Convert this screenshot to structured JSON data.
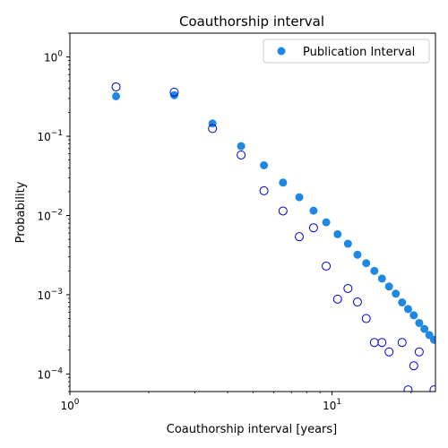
{
  "chart_data": {
    "type": "scatter",
    "title": "Coauthorship interval",
    "xlabel": "Coauthorship interval [years]",
    "ylabel": "Probability",
    "x_scale": "log",
    "y_scale": "log",
    "xlim": [
      1,
      24.8
    ],
    "ylim": [
      6e-05,
      2
    ],
    "grid": false,
    "legend_position": "top-right",
    "x_ticks": [
      {
        "value": 1,
        "label": "10^0"
      },
      {
        "value": 10,
        "label": "10^1"
      }
    ],
    "y_ticks": [
      {
        "value": 0.0001,
        "label": "10^-4"
      },
      {
        "value": 0.001,
        "label": "10^-3"
      },
      {
        "value": 0.01,
        "label": "10^-2"
      },
      {
        "value": 0.1,
        "label": "10^-1"
      },
      {
        "value": 1,
        "label": "10^0"
      }
    ],
    "series": [
      {
        "name": "Publication Interval",
        "marker": "filled-circle",
        "color": "#1e88e5",
        "x": [
          1.5,
          2.5,
          3.5,
          4.5,
          5.5,
          6.5,
          7.5,
          8.5,
          9.5,
          10.5,
          11.5,
          12.5,
          13.5,
          14.5,
          15.5,
          16.5,
          17.5,
          18.5,
          19.5,
          20.5,
          21.5,
          22.5,
          23.5,
          24.5
        ],
        "y": [
          0.32,
          0.33,
          0.145,
          0.075,
          0.043,
          0.026,
          0.017,
          0.0115,
          0.0082,
          0.0058,
          0.0044,
          0.0032,
          0.0025,
          0.002,
          0.0016,
          0.00127,
          0.00103,
          0.0008,
          0.00066,
          0.00055,
          0.00044,
          0.00037,
          0.00031,
          0.00027
        ]
      },
      {
        "marker": "hollow-circle",
        "color": "#0000cc",
        "x": [
          1.5,
          2.5,
          3.5,
          4.5,
          5.5,
          6.5,
          7.5,
          8.5,
          9.5,
          10.5,
          11.5,
          12.5,
          13.5,
          14.5,
          15.5,
          16.5,
          18.5,
          19.5,
          20.5,
          21.5,
          24.5
        ],
        "y": [
          0.42,
          0.36,
          0.125,
          0.058,
          0.0205,
          0.0114,
          0.0054,
          0.007,
          0.0023,
          0.00088,
          0.0012,
          0.00081,
          0.0005,
          0.00025,
          0.00025,
          0.00019,
          0.00025,
          6.3e-05,
          0.000127,
          0.00019,
          6.3e-05
        ]
      }
    ]
  }
}
